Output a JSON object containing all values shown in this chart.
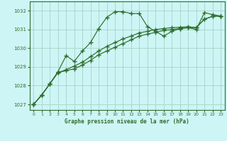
{
  "title": "Graphe pression niveau de la mer (hPa)",
  "background_color": "#cef5f5",
  "grid_color": "#a8d8cc",
  "line_color": "#2d6e2d",
  "xlim": [
    -0.5,
    23.5
  ],
  "ylim": [
    1026.7,
    1032.5
  ],
  "yticks": [
    1027,
    1028,
    1029,
    1030,
    1031,
    1032
  ],
  "xticks": [
    0,
    1,
    2,
    3,
    4,
    5,
    6,
    7,
    8,
    9,
    10,
    11,
    12,
    13,
    14,
    15,
    16,
    17,
    18,
    19,
    20,
    21,
    22,
    23
  ],
  "series1_x": [
    0,
    1,
    2,
    3,
    4,
    5,
    6,
    7,
    8,
    9,
    10,
    11,
    12,
    13,
    14,
    15,
    16,
    17,
    18,
    19,
    20,
    21,
    22,
    23
  ],
  "series1_y": [
    1027.0,
    1027.5,
    1028.1,
    1028.75,
    1029.6,
    1029.3,
    1029.85,
    1030.3,
    1031.05,
    1031.65,
    1031.95,
    1031.95,
    1031.85,
    1031.85,
    1031.15,
    1030.9,
    1030.65,
    1030.9,
    1031.05,
    1031.1,
    1031.0,
    1031.9,
    1031.8,
    1031.72
  ],
  "series2_x": [
    0,
    1,
    2,
    3,
    4,
    5,
    6,
    7,
    8,
    9,
    10,
    11,
    12,
    13,
    14,
    15,
    16,
    17,
    18,
    19,
    20,
    21,
    22,
    23
  ],
  "series2_y": [
    1027.0,
    1027.5,
    1028.1,
    1028.7,
    1028.8,
    1028.9,
    1029.1,
    1029.35,
    1029.65,
    1029.85,
    1030.05,
    1030.25,
    1030.45,
    1030.65,
    1030.75,
    1030.85,
    1030.95,
    1031.0,
    1031.05,
    1031.1,
    1031.1,
    1031.55,
    1031.7,
    1031.72
  ],
  "series3_x": [
    0,
    1,
    2,
    3,
    4,
    5,
    6,
    7,
    8,
    9,
    10,
    11,
    12,
    13,
    14,
    15,
    16,
    17,
    18,
    19,
    20,
    21,
    22,
    23
  ],
  "series3_y": [
    1027.0,
    1027.5,
    1028.1,
    1028.7,
    1028.85,
    1029.05,
    1029.25,
    1029.55,
    1029.85,
    1030.1,
    1030.3,
    1030.5,
    1030.65,
    1030.82,
    1030.9,
    1031.0,
    1031.05,
    1031.1,
    1031.12,
    1031.15,
    1031.1,
    1031.55,
    1031.7,
    1031.72
  ]
}
